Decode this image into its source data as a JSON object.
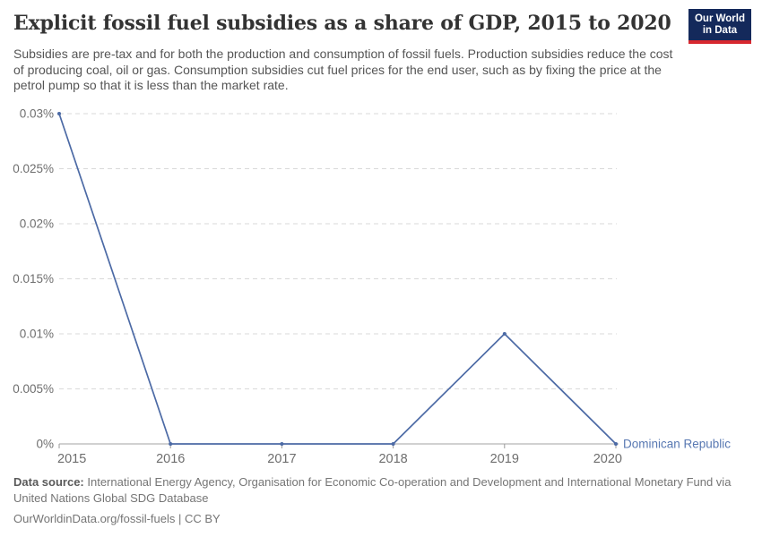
{
  "header": {
    "title": "Explicit fossil fuel subsidies as a share of GDP, 2015 to 2020",
    "subtitle": "Subsidies are pre-tax and for both the production and consumption of fossil fuels. Production subsidies reduce the cost of producing coal, oil or gas. Consumption subsidies cut fuel prices for the end user, such as by fixing the price at the petrol pump so that it is less than the market rate.",
    "logo": {
      "line1": "Our World",
      "line2": "in Data"
    }
  },
  "chart_data": {
    "type": "line",
    "title": "Explicit fossil fuel subsidies as a share of GDP, 2015 to 2020",
    "x": [
      2015,
      2016,
      2017,
      2018,
      2019,
      2020
    ],
    "x_tick_labels": [
      "2015",
      "2016",
      "2017",
      "2018",
      "2019",
      "2020"
    ],
    "series": [
      {
        "name": "Dominican Republic",
        "values": [
          0.03,
          0,
          0,
          0,
          0.01,
          0
        ]
      }
    ],
    "ylim": [
      0,
      0.03
    ],
    "y_ticks": [
      0,
      0.005,
      0.01,
      0.015,
      0.02,
      0.025,
      0.03
    ],
    "y_tick_labels": [
      "0%",
      "0.005%",
      "0.01%",
      "0.015%",
      "0.02%",
      "0.025%",
      "0.03%"
    ],
    "xlabel": "",
    "ylabel": "",
    "grid": "horizontal-dashed",
    "legend_position": "line-end-label"
  },
  "footer": {
    "source_label": "Data source:",
    "source_text": " International Energy Agency, Organisation for Economic Co-operation and Development and International Monetary Fund via United Nations Global SDG Database",
    "link": "OurWorldinData.org/fossil-fuels",
    "separator": " | ",
    "license": "CC BY"
  },
  "colors": {
    "line": "#4c6aa5",
    "series_label": "#5878b2",
    "grid": "#d9d9d9",
    "axis": "#a3a3a3",
    "tick_mark": "#999999",
    "tick_text": "#6e6e6e",
    "logo_bg": "#14295b",
    "logo_red": "#d7282f"
  }
}
